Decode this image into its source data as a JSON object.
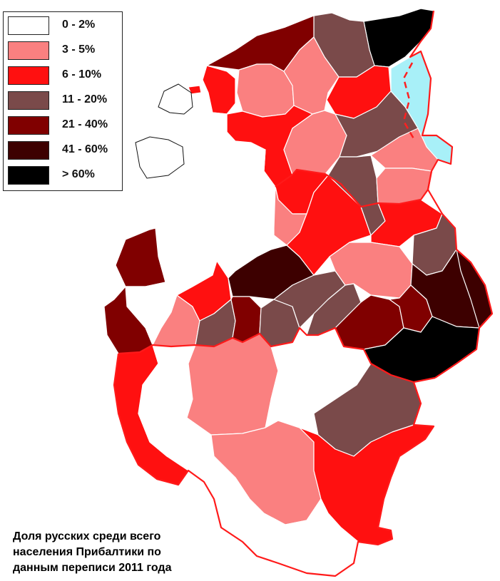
{
  "colors": {
    "c1": "#ffffff",
    "c2": "#fa8080",
    "c3": "#ff1010",
    "c4": "#7a4a4a",
    "c5": "#800000",
    "c6": "#3d0000",
    "c7": "#000000",
    "lake": "#a8f0f8",
    "border_red": "#ff1a1a"
  },
  "legend": {
    "items": [
      {
        "label": "0 - 2%",
        "color": "#ffffff"
      },
      {
        "label": "3 - 5%",
        "color": "#fa8080"
      },
      {
        "label": "6 - 10%",
        "color": "#ff1010"
      },
      {
        "label": "11 - 20%",
        "color": "#7a4a4a"
      },
      {
        "label": "21 - 40%",
        "color": "#800000"
      },
      {
        "label": "41 - 60%",
        "color": "#3d0000"
      },
      {
        "label": "> 60%",
        "color": "#000000"
      }
    ]
  },
  "caption": {
    "line1": "Доля русских среди всего",
    "line2": "населения Прибалтики по",
    "line3": "данным переписи 2011 года"
  }
}
